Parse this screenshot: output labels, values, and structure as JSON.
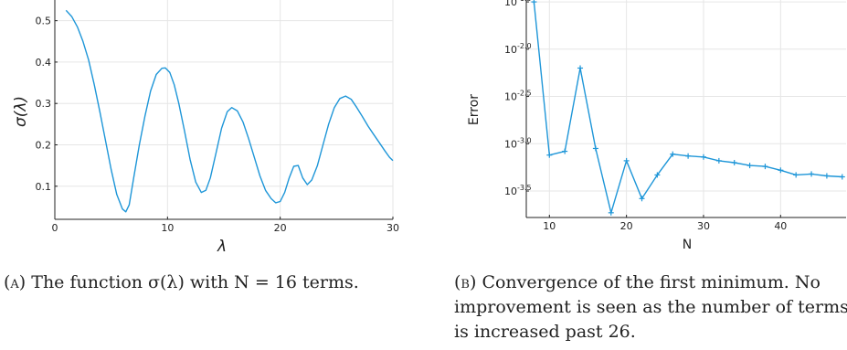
{
  "colors": {
    "series": "#1e96d8",
    "grid": "#e6e6e6",
    "axis": "#222222"
  },
  "chart_data": [
    {
      "type": "line",
      "xlabel": "λ",
      "ylabel": "σ(λ)",
      "xlim": [
        0,
        30
      ],
      "ylim": [
        0.02,
        0.55
      ],
      "xticks": [
        0,
        10,
        20,
        30
      ],
      "xtick_labels": [
        "0",
        "10",
        "20",
        "30"
      ],
      "yticks": [
        0.1,
        0.2,
        0.3,
        0.4,
        0.5
      ],
      "ytick_labels": [
        "0.1",
        "0.2",
        "0.3",
        "0.4",
        "0.5"
      ],
      "grid": true,
      "series": [
        {
          "x": [
            1.0,
            1.5,
            2.0,
            2.5,
            3.0,
            3.5,
            4.0,
            4.5,
            5.0,
            5.5,
            6.0,
            6.3,
            6.6,
            7.0,
            7.5,
            8.0,
            8.5,
            9.0,
            9.5,
            9.8,
            10.2,
            10.6,
            11.0,
            11.5,
            12.0,
            12.5,
            13.0,
            13.4,
            13.8,
            14.3,
            14.8,
            15.3,
            15.7,
            16.2,
            16.7,
            17.2,
            17.7,
            18.2,
            18.7,
            19.2,
            19.6,
            20.0,
            20.4,
            20.8,
            21.2,
            21.6,
            22.0,
            22.4,
            22.8,
            23.3,
            23.8,
            24.3,
            24.8,
            25.3,
            25.8,
            26.3,
            26.8,
            27.3,
            27.8,
            28.3,
            28.8,
            29.3,
            29.7,
            30.0
          ],
          "y": [
            0.525,
            0.51,
            0.485,
            0.45,
            0.405,
            0.345,
            0.28,
            0.21,
            0.14,
            0.08,
            0.045,
            0.038,
            0.055,
            0.12,
            0.2,
            0.27,
            0.33,
            0.37,
            0.385,
            0.386,
            0.375,
            0.345,
            0.3,
            0.235,
            0.165,
            0.11,
            0.085,
            0.09,
            0.12,
            0.18,
            0.24,
            0.28,
            0.29,
            0.282,
            0.255,
            0.215,
            0.17,
            0.125,
            0.09,
            0.07,
            0.06,
            0.063,
            0.085,
            0.12,
            0.148,
            0.15,
            0.12,
            0.104,
            0.115,
            0.15,
            0.2,
            0.25,
            0.29,
            0.312,
            0.318,
            0.31,
            0.29,
            0.268,
            0.245,
            0.225,
            0.205,
            0.185,
            0.17,
            0.162
          ]
        }
      ]
    },
    {
      "type": "line",
      "xlabel": "N",
      "ylabel": "Error",
      "xlim": [
        7,
        48.5
      ],
      "ylim": [
        -3.78,
        -1.48
      ],
      "xticks": [
        10,
        20,
        30,
        40
      ],
      "xtick_labels": [
        "10",
        "20",
        "30",
        "40"
      ],
      "yticks": [
        -1.5,
        -2.0,
        -2.5,
        -3.0,
        -3.5
      ],
      "ytick_bases": [
        "10",
        "10",
        "10",
        "10",
        "10"
      ],
      "ytick_exponents": [
        "-1.5",
        "-2.0",
        "-2.5",
        "-3.0",
        "-3.5"
      ],
      "log_scale_y": true,
      "grid": true,
      "markers": "+",
      "series": [
        {
          "x": [
            8,
            10,
            12,
            14,
            16,
            18,
            20,
            22,
            24,
            26,
            28,
            30,
            32,
            34,
            36,
            38,
            40,
            42,
            44,
            46,
            48
          ],
          "y": [
            -1.5,
            -3.12,
            -3.08,
            -2.2,
            -3.05,
            -3.73,
            -3.18,
            -3.58,
            -3.33,
            -3.11,
            -3.13,
            -3.14,
            -3.18,
            -3.2,
            -3.23,
            -3.24,
            -3.28,
            -3.33,
            -3.32,
            -3.34,
            -3.35
          ]
        }
      ]
    }
  ],
  "captions": {
    "a_label": "(a)",
    "a_text": "The function σ(λ) with N = 16 terms.",
    "b_label": "(b)",
    "b_text": "Convergence of the first minimum. No improvement is seen as the number of terms is increased past 26."
  }
}
